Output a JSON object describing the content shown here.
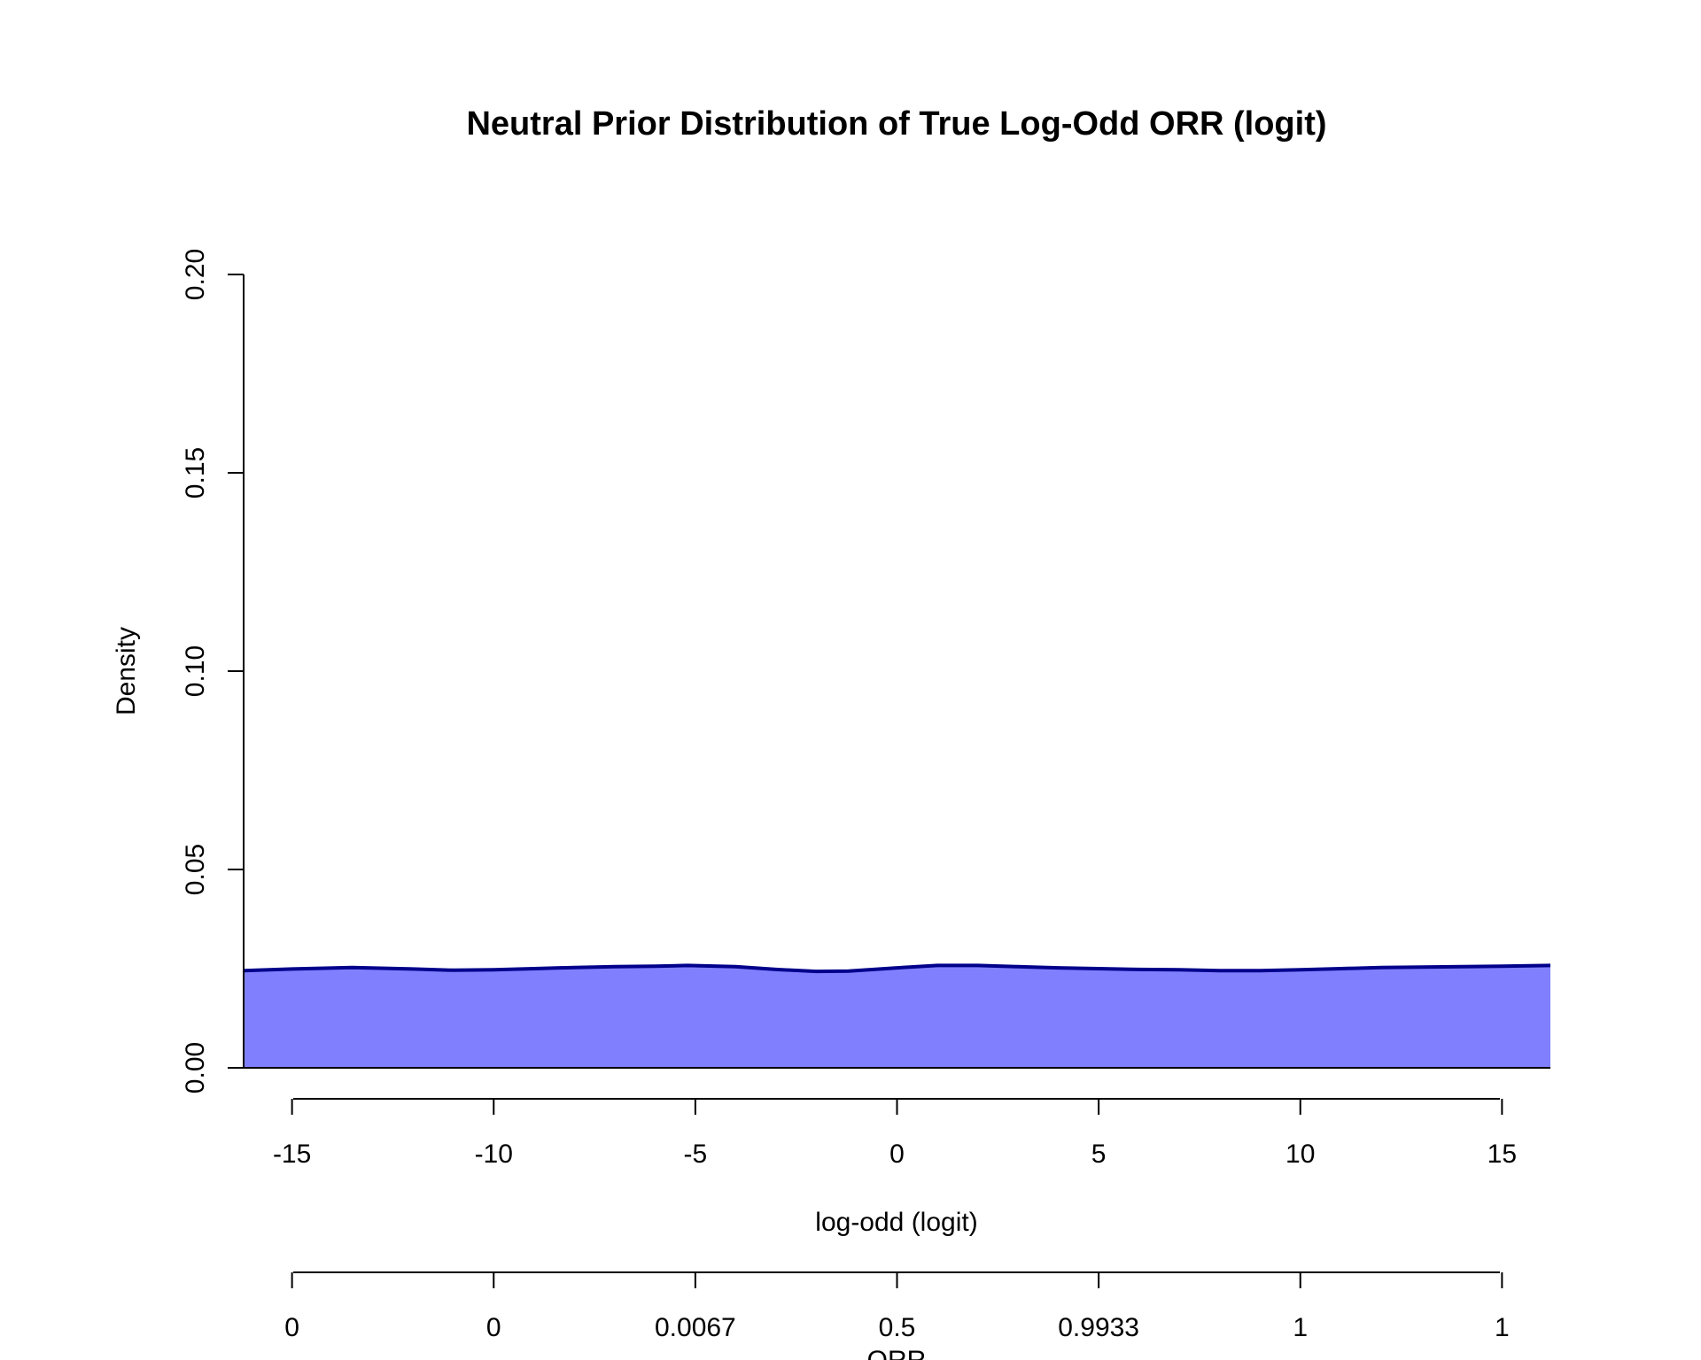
{
  "chart_data": {
    "type": "area",
    "title": "Neutral Prior Distribution of True Log-Odd ORR (logit)",
    "xlabel": "log-odd (logit)",
    "ylabel": "Density",
    "secondary_xlabel": "ORR",
    "xlim": [
      -16.2,
      16.2
    ],
    "ylim": [
      0,
      0.2
    ],
    "x_ticks": [
      -15,
      -10,
      -5,
      0,
      5,
      10,
      15
    ],
    "x_tick_labels": [
      "-15",
      "-10",
      "-5",
      "0",
      "5",
      "10",
      "15"
    ],
    "y_ticks": [
      0,
      0.05,
      0.1,
      0.15,
      0.2
    ],
    "y_tick_labels": [
      "0.00",
      "0.05",
      "0.10",
      "0.15",
      "0.20"
    ],
    "secondary_x_ticks": [
      -15,
      -10,
      -5,
      0,
      5,
      10,
      15
    ],
    "secondary_x_tick_labels": [
      "0",
      "0",
      "0.0067",
      "0.5",
      "0.9933",
      "1",
      "1"
    ],
    "grid": false,
    "legend": "none",
    "series": [
      {
        "x": [
          -16.2,
          -15,
          -13.5,
          -12,
          -11,
          -10,
          -9,
          -8,
          -7,
          -6,
          -5.2,
          -4,
          -3,
          -2,
          -1.2,
          0,
          1,
          2,
          3,
          4,
          5,
          6,
          7,
          8,
          9,
          10,
          11,
          12,
          13,
          14,
          15,
          16.2
        ],
        "y": [
          0.0245,
          0.0249,
          0.0253,
          0.0249,
          0.0246,
          0.0247,
          0.025,
          0.0253,
          0.0255,
          0.0256,
          0.0258,
          0.0255,
          0.0248,
          0.0243,
          0.0244,
          0.0252,
          0.0258,
          0.0258,
          0.0255,
          0.0252,
          0.025,
          0.0248,
          0.0247,
          0.0245,
          0.0245,
          0.0247,
          0.025,
          0.0253,
          0.0254,
          0.0255,
          0.0256,
          0.0258
        ]
      }
    ],
    "colors": {
      "fill": "#8080ff",
      "line": "#00008b",
      "axis": "#000000"
    }
  }
}
